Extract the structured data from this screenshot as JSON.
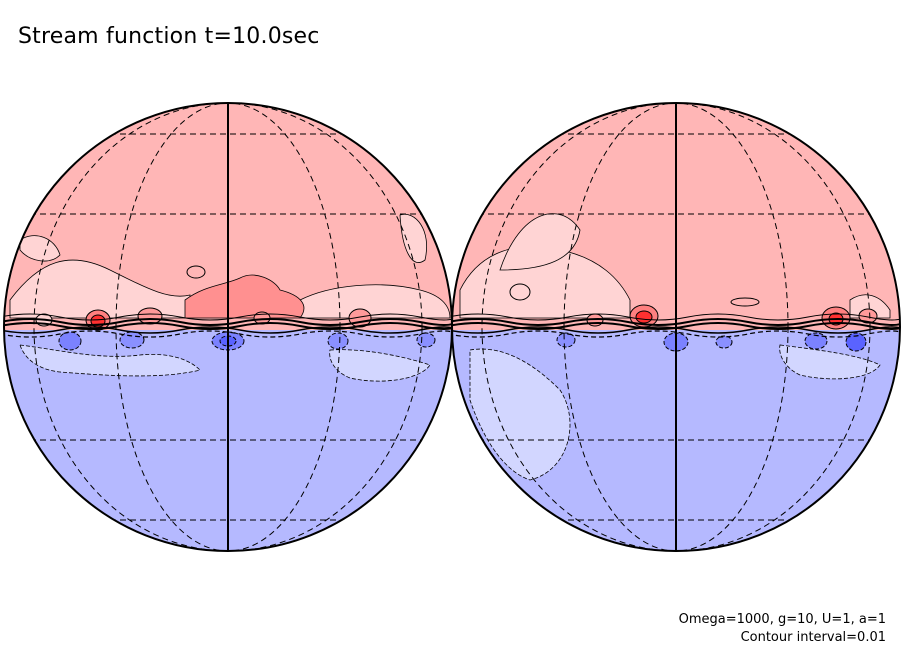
{
  "title": "Stream function t=10.0sec",
  "footer": {
    "params": "Omega=1000, g=10, U=1, a=1",
    "contour": "Contour interval=0.01"
  },
  "colors": {
    "positive": "#ffb6b6",
    "positive_light": "#ffd4d4",
    "positive_strong": "#ff5050",
    "negative": "#b5b9ff",
    "negative_light": "#d2d6ff",
    "negative_strong": "#5a63ff"
  },
  "globes": [
    {
      "name": "left"
    },
    {
      "name": "right"
    }
  ]
}
